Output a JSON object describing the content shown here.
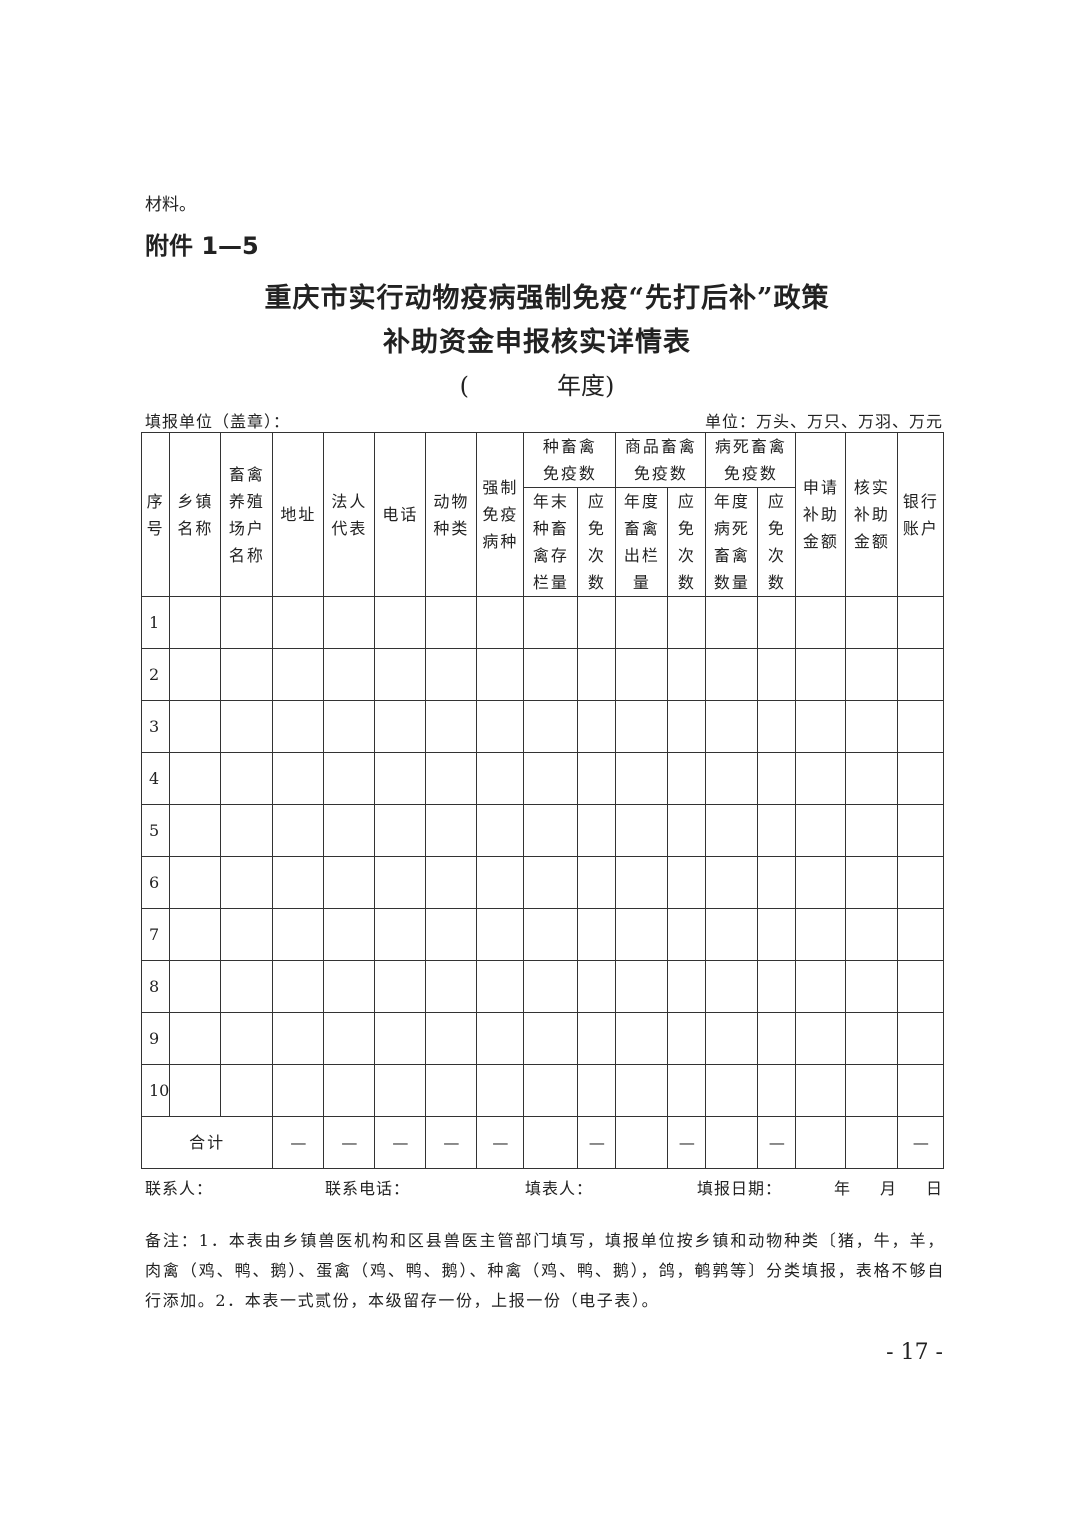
{
  "prev_text": "材料。",
  "attachment": "附件 1—5",
  "title_line1": "重庆市实行动物疫病强制免疫“先打后补”政策",
  "title_line2": "补助资金申报核实详情表",
  "year_open": "(",
  "year_label": "年度",
  "year_close": ")",
  "unit_left": "填报单位（盖章）：",
  "unit_right": "单位：万头、万只、万羽、万元",
  "headers": {
    "seq": [
      "序",
      "号"
    ],
    "town": [
      "乡镇",
      "名称"
    ],
    "farm": [
      "畜禽",
      "养殖",
      "场户",
      "名称"
    ],
    "address": [
      "地址"
    ],
    "legal": [
      "法人",
      "代表"
    ],
    "phone": [
      "电话"
    ],
    "species": [
      "动物",
      "种类"
    ],
    "disease": [
      "强制",
      "免疫",
      "病种"
    ],
    "breeding": [
      "种畜禽",
      "免疫数"
    ],
    "commercial": [
      "商品畜禽",
      "免疫数"
    ],
    "dead": [
      "病死畜禽",
      "免疫数"
    ],
    "apply": [
      "申请",
      "补助",
      "金额"
    ],
    "verify": [
      "核实",
      "补助",
      "金额"
    ],
    "bank": [
      "银行",
      "账户"
    ],
    "breeding_stock": [
      "年末",
      "种畜",
      "禽存",
      "栏量"
    ],
    "breeding_doses": [
      "应",
      "免",
      "次",
      "数"
    ],
    "comm_out": [
      "年度",
      "畜禽",
      "出栏",
      "量"
    ],
    "comm_doses": [
      "应",
      "免",
      "次",
      "数"
    ],
    "dead_count": [
      "年度",
      "病死",
      "畜禽",
      "数量"
    ],
    "dead_doses": [
      "应",
      "免",
      "次",
      "数"
    ]
  },
  "rows": [
    "1",
    "2",
    "3",
    "4",
    "5",
    "6",
    "7",
    "8",
    "9",
    "10"
  ],
  "total": {
    "label": "合计",
    "cells": [
      "—",
      "—",
      "—",
      "—",
      "—",
      "",
      "—",
      "",
      "—",
      "",
      "—",
      "",
      "",
      "—"
    ]
  },
  "footer": {
    "contact": "联系人：",
    "contact_phone": "联系电话：",
    "filler": "填表人：",
    "date": "填报日期：",
    "y": "年",
    "m": "月",
    "d": "日"
  },
  "note": "备注：1．本表由乡镇兽医机构和区县兽医主管部门填写，填报单位按乡镇和动物种类〔猪，牛，羊，肉禽（鸡、鸭、鹅）、蛋禽（鸡、鸭、鹅）、种禽（鸡、鸭、鹅），鸽，鹌鹑等〕分类填报，表格不够自行添加。2．本表一式贰份，本级留存一份，上报一份（电子表）。",
  "page_number": "- 17 -"
}
